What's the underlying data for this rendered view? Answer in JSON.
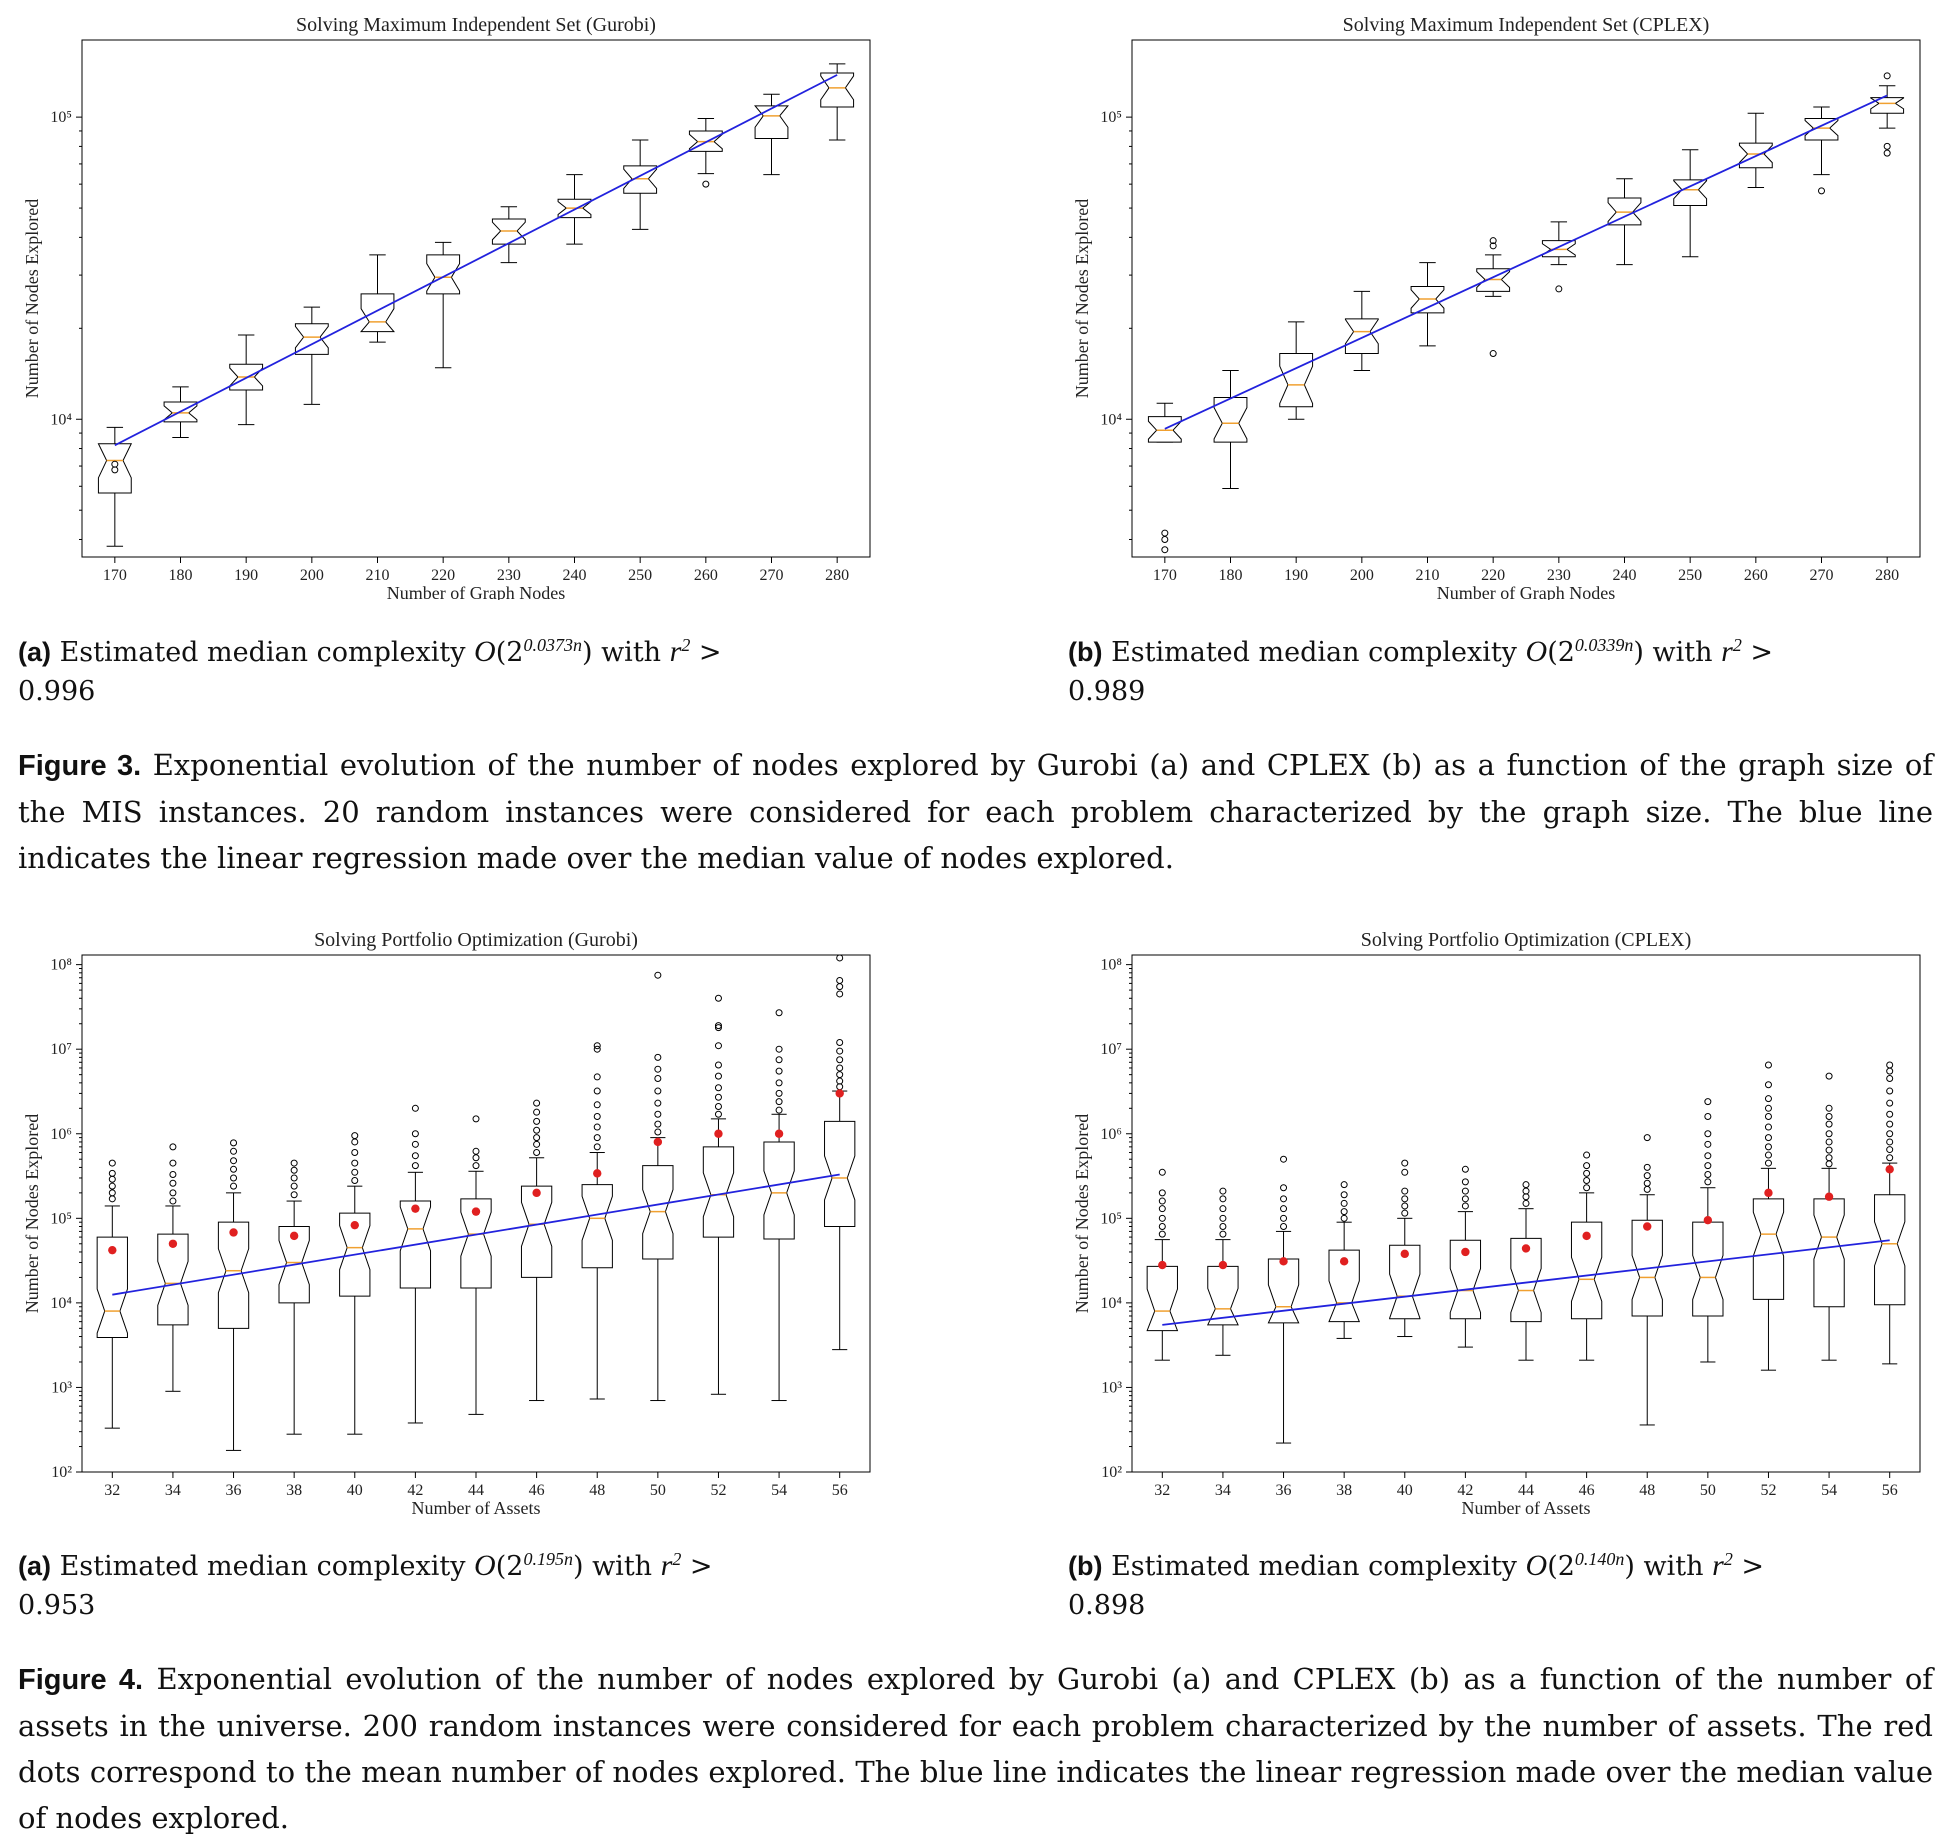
{
  "chart_data": [
    {
      "type": "box",
      "title": "Solving Maximum Independent Set (Gurobi)",
      "xlabel": "Number of Graph Nodes",
      "ylabel": "Number of Nodes Explored",
      "yscale": "log",
      "ylim": [
        3500,
        180000
      ],
      "yticks": [
        {
          "value": 10000,
          "label": "10⁴"
        },
        {
          "value": 100000,
          "label": "10⁵"
        }
      ],
      "categories": [
        "170",
        "180",
        "190",
        "200",
        "210",
        "220",
        "230",
        "240",
        "250",
        "260",
        "270",
        "280"
      ],
      "boxes": [
        {
          "whislo": 3800,
          "q1": 5700,
          "med": 7300,
          "q3": 8300,
          "whishi": 9400,
          "fliers": [
            7100,
            6800
          ]
        },
        {
          "whislo": 8700,
          "q1": 9800,
          "med": 10500,
          "q3": 11400,
          "whishi": 12800,
          "fliers": []
        },
        {
          "whislo": 9600,
          "q1": 12500,
          "med": 13800,
          "q3": 15200,
          "whishi": 19000,
          "fliers": []
        },
        {
          "whislo": 11200,
          "q1": 16400,
          "med": 18700,
          "q3": 20700,
          "whishi": 23500,
          "fliers": []
        },
        {
          "whislo": 18000,
          "q1": 19500,
          "med": 21000,
          "q3": 26000,
          "whishi": 35000,
          "fliers": []
        },
        {
          "whislo": 14800,
          "q1": 26000,
          "med": 29500,
          "q3": 35000,
          "whishi": 38500,
          "fliers": []
        },
        {
          "whislo": 33000,
          "q1": 38000,
          "med": 42000,
          "q3": 46000,
          "whishi": 50500,
          "fliers": []
        },
        {
          "whislo": 38000,
          "q1": 46500,
          "med": 50000,
          "q3": 53500,
          "whishi": 64500,
          "fliers": []
        },
        {
          "whislo": 42500,
          "q1": 56000,
          "med": 62500,
          "q3": 69000,
          "whishi": 84000,
          "fliers": []
        },
        {
          "whislo": 65000,
          "q1": 77000,
          "med": 83000,
          "q3": 90000,
          "whishi": 99000,
          "fliers": [
            60000
          ]
        },
        {
          "whislo": 64500,
          "q1": 85000,
          "med": 101000,
          "q3": 109000,
          "whishi": 119000,
          "fliers": []
        },
        {
          "whislo": 84000,
          "q1": 108000,
          "med": 125000,
          "q3": 140000,
          "whishi": 150000,
          "fliers": []
        }
      ],
      "fit_line": {
        "x": [
          "170",
          "280"
        ],
        "y": [
          8200,
          138000
        ]
      }
    },
    {
      "type": "box",
      "title": "Solving Maximum Independent Set (CPLEX)",
      "xlabel": "Number of Graph Nodes",
      "ylabel": "Number of Nodes Explored",
      "yscale": "log",
      "ylim": [
        3500,
        180000
      ],
      "yticks": [
        {
          "value": 10000,
          "label": "10⁴"
        },
        {
          "value": 100000,
          "label": "10⁵"
        }
      ],
      "categories": [
        "170",
        "180",
        "190",
        "200",
        "210",
        "220",
        "230",
        "240",
        "250",
        "260",
        "270",
        "280"
      ],
      "boxes": [
        {
          "whislo": 8400,
          "q1": 8400,
          "med": 9200,
          "q3": 10200,
          "whishi": 11300,
          "fliers": [
            4000,
            4200,
            3700
          ]
        },
        {
          "whislo": 5900,
          "q1": 8400,
          "med": 9700,
          "q3": 11800,
          "whishi": 14500,
          "fliers": []
        },
        {
          "whislo": 10000,
          "q1": 11000,
          "med": 13000,
          "q3": 16500,
          "whishi": 21000,
          "fliers": []
        },
        {
          "whislo": 14500,
          "q1": 16500,
          "med": 19500,
          "q3": 21500,
          "whishi": 26500,
          "fliers": []
        },
        {
          "whislo": 17500,
          "q1": 22500,
          "med": 25000,
          "q3": 27500,
          "whishi": 33000,
          "fliers": []
        },
        {
          "whislo": 25500,
          "q1": 26500,
          "med": 29000,
          "q3": 31500,
          "whishi": 35000,
          "fliers": [
            39000,
            16500,
            37500
          ]
        },
        {
          "whislo": 32500,
          "q1": 34500,
          "med": 36500,
          "q3": 39000,
          "whishi": 45000,
          "fliers": [
            27000
          ]
        },
        {
          "whislo": 32500,
          "q1": 44000,
          "med": 48500,
          "q3": 54000,
          "whishi": 62500,
          "fliers": []
        },
        {
          "whislo": 34500,
          "q1": 51000,
          "med": 57500,
          "q3": 62000,
          "whishi": 78000,
          "fliers": []
        },
        {
          "whislo": 58500,
          "q1": 68000,
          "med": 75500,
          "q3": 82000,
          "whishi": 103000,
          "fliers": []
        },
        {
          "whislo": 64500,
          "q1": 84000,
          "med": 92000,
          "q3": 99000,
          "whishi": 108000,
          "fliers": [
            57000
          ]
        },
        {
          "whislo": 92000,
          "q1": 103000,
          "med": 111000,
          "q3": 116000,
          "whishi": 127000,
          "fliers": [
            137000,
            80000,
            76000
          ]
        }
      ],
      "fit_line": {
        "x": [
          "170",
          "280"
        ],
        "y": [
          9300,
          118000
        ]
      }
    },
    {
      "type": "box",
      "title": "Solving Portfolio Optimization (Gurobi)",
      "xlabel": "Number of Assets",
      "ylabel": "Number of Nodes Explored",
      "yscale": "log",
      "ylim": [
        100,
        130000000
      ],
      "yticks": [
        {
          "value": 100,
          "label": "10²"
        },
        {
          "value": 1000,
          "label": "10³"
        },
        {
          "value": 10000,
          "label": "10⁴"
        },
        {
          "value": 100000,
          "label": "10⁵"
        },
        {
          "value": 1000000,
          "label": "10⁶"
        },
        {
          "value": 10000000,
          "label": "10⁷"
        },
        {
          "value": 100000000,
          "label": "10⁸"
        }
      ],
      "categories": [
        "32",
        "34",
        "36",
        "38",
        "40",
        "42",
        "44",
        "46",
        "48",
        "50",
        "52",
        "54",
        "56"
      ],
      "boxes": [
        {
          "whislo": 330,
          "q1": 3900,
          "med": 8000,
          "q3": 60000,
          "whishi": 140000,
          "fliers": [
            170000,
            200000,
            240000,
            290000,
            340000,
            450000
          ]
        },
        {
          "whislo": 900,
          "q1": 5500,
          "med": 17000,
          "q3": 65000,
          "whishi": 140000,
          "fliers": [
            160000,
            200000,
            260000,
            330000,
            450000,
            700000
          ]
        },
        {
          "whislo": 180,
          "q1": 5000,
          "med": 24000,
          "q3": 90000,
          "whishi": 200000,
          "fliers": [
            240000,
            300000,
            380000,
            480000,
            620000,
            780000
          ]
        },
        {
          "whislo": 280,
          "q1": 10000,
          "med": 30000,
          "q3": 80000,
          "whishi": 160000,
          "fliers": [
            190000,
            240000,
            300000,
            370000,
            450000
          ]
        },
        {
          "whislo": 280,
          "q1": 12000,
          "med": 45000,
          "q3": 115000,
          "whishi": 240000,
          "fliers": [
            280000,
            350000,
            450000,
            600000,
            800000,
            950000
          ]
        },
        {
          "whislo": 380,
          "q1": 15000,
          "med": 75000,
          "q3": 160000,
          "whishi": 350000,
          "fliers": [
            420000,
            550000,
            750000,
            1000000,
            2000000
          ]
        },
        {
          "whislo": 480,
          "q1": 15000,
          "med": 65000,
          "q3": 170000,
          "whishi": 360000,
          "fliers": [
            420000,
            520000,
            620000,
            1500000
          ]
        },
        {
          "whislo": 700,
          "q1": 20000,
          "med": 85000,
          "q3": 240000,
          "whishi": 520000,
          "fliers": [
            600000,
            750000,
            900000,
            1100000,
            1400000,
            1800000,
            2300000
          ]
        },
        {
          "whislo": 730,
          "q1": 26000,
          "med": 100000,
          "q3": 250000,
          "whishi": 600000,
          "fliers": [
            700000,
            900000,
            1200000,
            1600000,
            2200000,
            3200000,
            4700000,
            10000000,
            11000000
          ]
        },
        {
          "whislo": 700,
          "q1": 33000,
          "med": 120000,
          "q3": 420000,
          "whishi": 900000,
          "fliers": [
            1050000,
            1300000,
            1700000,
            2300000,
            3200000,
            4500000,
            5800000,
            8000000,
            75000000
          ]
        },
        {
          "whislo": 830,
          "q1": 60000,
          "med": 190000,
          "q3": 700000,
          "whishi": 1500000,
          "fliers": [
            1700000,
            2100000,
            2700000,
            3500000,
            4800000,
            6500000,
            11000000,
            18000000,
            19000000,
            40000000
          ]
        },
        {
          "whislo": 700,
          "q1": 57000,
          "med": 200000,
          "q3": 800000,
          "whishi": 1700000,
          "fliers": [
            1900000,
            2400000,
            3000000,
            4000000,
            5500000,
            7500000,
            10000000,
            27000000
          ]
        },
        {
          "whislo": 2800,
          "q1": 80000,
          "med": 300000,
          "q3": 1400000,
          "whishi": 3200000,
          "fliers": [
            3600000,
            4200000,
            5000000,
            6000000,
            7500000,
            9500000,
            12000000,
            45000000,
            55000000,
            65000000,
            120000000
          ]
        }
      ],
      "means": [
        42000,
        50000,
        68000,
        62000,
        83000,
        130000,
        120000,
        200000,
        340000,
        800000,
        1000000,
        1000000,
        3000000
      ],
      "fit_line": {
        "x": [
          "32",
          "56"
        ],
        "y": [
          12500,
          330000
        ]
      }
    },
    {
      "type": "box",
      "title": "Solving Portfolio Optimization (CPLEX)",
      "xlabel": "Number of Assets",
      "ylabel": "Number of Nodes Explored",
      "yscale": "log",
      "ylim": [
        100,
        130000000
      ],
      "yticks": [
        {
          "value": 100,
          "label": "10²"
        },
        {
          "value": 1000,
          "label": "10³"
        },
        {
          "value": 10000,
          "label": "10⁴"
        },
        {
          "value": 100000,
          "label": "10⁵"
        },
        {
          "value": 1000000,
          "label": "10⁶"
        },
        {
          "value": 10000000,
          "label": "10⁷"
        },
        {
          "value": 100000000,
          "label": "10⁸"
        }
      ],
      "categories": [
        "32",
        "34",
        "36",
        "38",
        "40",
        "42",
        "44",
        "46",
        "48",
        "50",
        "52",
        "54",
        "56"
      ],
      "boxes": [
        {
          "whislo": 2100,
          "q1": 4700,
          "med": 8000,
          "q3": 27000,
          "whishi": 56000,
          "fliers": [
            65000,
            80000,
            100000,
            130000,
            160000,
            200000,
            350000
          ]
        },
        {
          "whislo": 2400,
          "q1": 5500,
          "med": 8500,
          "q3": 27000,
          "whishi": 56000,
          "fliers": [
            65000,
            80000,
            100000,
            130000,
            170000,
            210000
          ]
        },
        {
          "whislo": 220,
          "q1": 5800,
          "med": 9000,
          "q3": 33000,
          "whishi": 70000,
          "fliers": [
            80000,
            100000,
            130000,
            170000,
            230000,
            500000
          ]
        },
        {
          "whislo": 3800,
          "q1": 6000,
          "med": 10000,
          "q3": 42000,
          "whishi": 90000,
          "fliers": [
            100000,
            120000,
            150000,
            190000,
            250000
          ]
        },
        {
          "whislo": 4000,
          "q1": 6500,
          "med": 12000,
          "q3": 48000,
          "whishi": 100000,
          "fliers": [
            115000,
            140000,
            170000,
            210000,
            350000,
            450000
          ]
        },
        {
          "whislo": 3000,
          "q1": 6500,
          "med": 14000,
          "q3": 55000,
          "whishi": 120000,
          "fliers": [
            140000,
            170000,
            210000,
            270000,
            380000
          ]
        },
        {
          "whislo": 2100,
          "q1": 6000,
          "med": 14000,
          "q3": 58000,
          "whishi": 130000,
          "fliers": [
            150000,
            180000,
            210000,
            250000
          ]
        },
        {
          "whislo": 2100,
          "q1": 6500,
          "med": 19000,
          "q3": 90000,
          "whishi": 200000,
          "fliers": [
            230000,
            280000,
            340000,
            420000,
            560000
          ]
        },
        {
          "whislo": 360,
          "q1": 7000,
          "med": 20000,
          "q3": 95000,
          "whishi": 190000,
          "fliers": [
            220000,
            260000,
            320000,
            400000,
            900000
          ]
        },
        {
          "whislo": 2000,
          "q1": 7000,
          "med": 20000,
          "q3": 90000,
          "whishi": 230000,
          "fliers": [
            270000,
            330000,
            420000,
            550000,
            750000,
            1000000,
            1600000,
            2400000
          ]
        },
        {
          "whislo": 1600,
          "q1": 11000,
          "med": 65000,
          "q3": 170000,
          "whishi": 390000,
          "fliers": [
            450000,
            560000,
            700000,
            900000,
            1200000,
            1600000,
            2000000,
            2600000,
            3800000,
            6500000
          ]
        },
        {
          "whislo": 2100,
          "q1": 9000,
          "med": 60000,
          "q3": 170000,
          "whishi": 390000,
          "fliers": [
            440000,
            520000,
            640000,
            800000,
            1000000,
            1300000,
            1600000,
            2000000,
            4800000
          ]
        },
        {
          "whislo": 1900,
          "q1": 9500,
          "med": 50000,
          "q3": 190000,
          "whishi": 450000,
          "fliers": [
            520000,
            650000,
            800000,
            1000000,
            1300000,
            1700000,
            2300000,
            3200000,
            4500000,
            5500000,
            6500000
          ]
        }
      ],
      "means": [
        28000,
        28000,
        31000,
        31000,
        38000,
        40000,
        44000,
        62000,
        80000,
        95000,
        200000,
        180000,
        380000
      ],
      "fit_line": {
        "x": [
          "32",
          "56"
        ],
        "y": [
          5500,
          55000
        ]
      }
    }
  ],
  "subcaptions": [
    {
      "letter": "(a)",
      "pre": "Estimated median complexity ",
      "math": "O",
      "exponent": "0.0373n",
      "mid": " with ",
      "r": "r",
      "r_sup": "2",
      "rel": " > ",
      "value": "0.996"
    },
    {
      "letter": "(b)",
      "pre": "Estimated median complexity ",
      "math": "O",
      "exponent": "0.0339n",
      "mid": " with ",
      "r": "r",
      "r_sup": "2",
      "rel": " > ",
      "value": "0.989"
    },
    {
      "letter": "(a)",
      "pre": "Estimated median complexity ",
      "math": "O",
      "exponent": "0.195n",
      "mid": " with ",
      "r": "r",
      "r_sup": "2",
      "rel": " > ",
      "value": "0.953"
    },
    {
      "letter": "(b)",
      "pre": "Estimated median complexity ",
      "math": "O",
      "exponent": "0.140n",
      "mid": " with ",
      "r": "r",
      "r_sup": "2",
      "rel": " > ",
      "value": "0.898"
    }
  ],
  "figure3": {
    "label": "Figure 3.",
    "text": "Exponential evolution of the number of nodes explored by Gurobi (a) and CPLEX (b) as a function of the graph size of the MIS instances. 20 random instances were considered for each problem characterized by the graph size. The blue line indicates the linear regression made over the median value of nodes explored."
  },
  "figure4": {
    "label": "Figure 4.",
    "text": "Exponential evolution of the number of nodes explored by Gurobi (a) and CPLEX (b) as a function of the number of assets in the universe. 200 random instances were considered for each problem characterized by the number of assets. The red dots correspond to the mean number of nodes explored. The blue line indicates the linear regression made over the median value of nodes explored."
  },
  "colors": {
    "median": "#f0a030",
    "fit": "#2222dd",
    "mean": "#e02020",
    "box": "#000000"
  }
}
